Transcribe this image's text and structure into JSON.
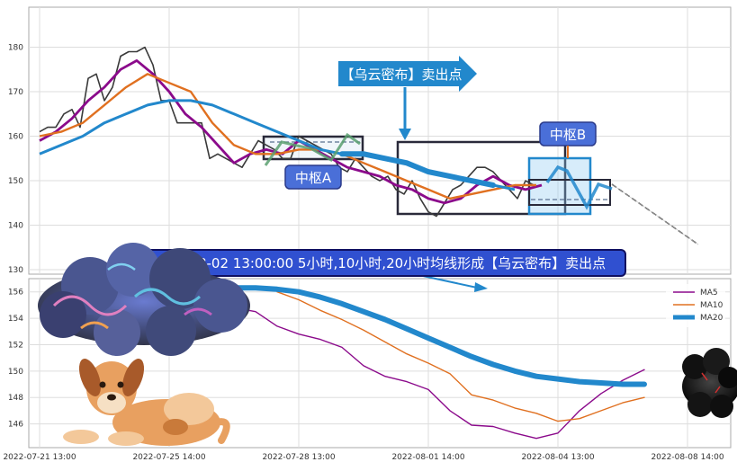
{
  "chart_data": [
    {
      "type": "line",
      "panel": "top",
      "ylim": [
        129,
        189
      ],
      "y_ticks": [
        130,
        140,
        150,
        160,
        170,
        180
      ],
      "grid": true,
      "series": [
        {
          "key": "price",
          "color": "#3a3a3a",
          "values": [
            [
              0,
              161
            ],
            [
              1.5,
              162
            ],
            [
              3,
              162
            ],
            [
              4.5,
              165
            ],
            [
              6,
              166
            ],
            [
              7.5,
              162
            ],
            [
              9,
              173
            ],
            [
              10.5,
              174
            ],
            [
              12,
              168
            ],
            [
              13.5,
              171
            ],
            [
              15,
              178
            ],
            [
              16.5,
              179
            ],
            [
              18,
              179
            ],
            [
              19.5,
              180
            ],
            [
              21,
              176
            ],
            [
              22.5,
              168
            ],
            [
              24,
              168
            ],
            [
              25.5,
              163
            ],
            [
              27,
              163
            ],
            [
              28.5,
              163
            ],
            [
              30,
              163
            ],
            [
              31.5,
              155
            ],
            [
              33,
              156
            ],
            [
              34.5,
              155
            ],
            [
              36,
              154
            ],
            [
              37.5,
              153
            ],
            [
              39,
              156
            ],
            [
              40.5,
              159
            ],
            [
              42,
              158
            ],
            [
              43.5,
              157
            ],
            [
              45,
              155
            ],
            [
              46.5,
              155
            ],
            [
              48,
              160
            ],
            [
              49.5,
              159
            ],
            [
              51,
              158
            ],
            [
              52.5,
              157
            ],
            [
              54,
              156
            ],
            [
              55.5,
              153
            ],
            [
              57,
              152
            ],
            [
              58.5,
              155
            ],
            [
              60,
              153
            ],
            [
              61.5,
              151
            ],
            [
              63,
              150
            ],
            [
              64.5,
              151
            ],
            [
              66,
              148
            ],
            [
              67.5,
              147
            ],
            [
              69,
              150
            ],
            [
              70.5,
              146
            ],
            [
              72,
              143
            ],
            [
              73.5,
              142
            ],
            [
              75,
              145
            ],
            [
              76.5,
              148
            ],
            [
              78,
              149
            ],
            [
              79.5,
              151
            ],
            [
              81,
              153
            ],
            [
              82.5,
              153
            ],
            [
              84,
              152
            ],
            [
              85.5,
              150
            ],
            [
              87,
              148
            ],
            [
              88.5,
              146
            ],
            [
              90,
              150
            ],
            [
              91.5,
              149
            ]
          ]
        },
        {
          "key": "ma5",
          "color": "#8b0a8b",
          "values": [
            [
              0,
              159
            ],
            [
              3,
              161
            ],
            [
              6,
              164
            ],
            [
              9,
              168
            ],
            [
              12,
              171
            ],
            [
              15,
              175
            ],
            [
              18,
              177
            ],
            [
              21,
              174
            ],
            [
              24,
              170
            ],
            [
              27,
              165
            ],
            [
              30,
              162
            ],
            [
              33,
              158
            ],
            [
              36,
              154
            ],
            [
              39,
              156
            ],
            [
              42,
              157
            ],
            [
              45,
              156
            ],
            [
              48,
              159
            ],
            [
              51,
              157
            ],
            [
              54,
              155
            ],
            [
              57,
              153
            ],
            [
              60,
              152
            ],
            [
              63,
              151
            ],
            [
              66,
              149
            ],
            [
              69,
              148
            ],
            [
              72,
              146
            ],
            [
              75,
              145
            ],
            [
              78,
              146
            ],
            [
              81,
              149
            ],
            [
              84,
              151
            ],
            [
              87,
              149
            ],
            [
              90,
              148
            ],
            [
              93,
              149
            ]
          ]
        },
        {
          "key": "ma10",
          "color": "#e07020",
          "values": [
            [
              0,
              160
            ],
            [
              4,
              161
            ],
            [
              8,
              163
            ],
            [
              12,
              167
            ],
            [
              16,
              171
            ],
            [
              20,
              174
            ],
            [
              24,
              172
            ],
            [
              28,
              170
            ],
            [
              32,
              163
            ],
            [
              36,
              158
            ],
            [
              40,
              156
            ],
            [
              44,
              156
            ],
            [
              48,
              157
            ],
            [
              52,
              157
            ],
            [
              56,
              156
            ],
            [
              60,
              154
            ],
            [
              64,
              152
            ],
            [
              68,
              150
            ],
            [
              72,
              148
            ],
            [
              76,
              146
            ],
            [
              80,
              147
            ],
            [
              84,
              148
            ],
            [
              88,
              149
            ],
            [
              92,
              149
            ]
          ]
        },
        {
          "key": "ma20",
          "color": "#2288cc",
          "values": [
            [
              0,
              156
            ],
            [
              4,
              158
            ],
            [
              8,
              160
            ],
            [
              12,
              163
            ],
            [
              16,
              165
            ],
            [
              20,
              167
            ],
            [
              24,
              168
            ],
            [
              28,
              168
            ],
            [
              32,
              167
            ],
            [
              36,
              165
            ],
            [
              40,
              163
            ],
            [
              44,
              161
            ],
            [
              48,
              159
            ],
            [
              52,
              157
            ],
            [
              56,
              156
            ],
            [
              60,
              156
            ],
            [
              64,
              155
            ],
            [
              68,
              154
            ],
            [
              72,
              152
            ],
            [
              76,
              151
            ],
            [
              80,
              150
            ],
            [
              84,
              149
            ],
            [
              88,
              148
            ]
          ]
        }
      ]
    },
    {
      "type": "line",
      "panel": "bottom",
      "ylim": [
        144.2,
        157
      ],
      "y_ticks": [
        146,
        148,
        150,
        152,
        154,
        156
      ],
      "x_ticks": [
        "2022-07-21 13:00",
        "2022-07-25 14:00",
        "2022-07-28 13:00",
        "2022-08-01 14:00",
        "2022-08-04 13:00",
        "2022-08-08 14:00"
      ],
      "x_tick_positions": [
        0,
        24,
        48,
        72,
        96,
        120
      ],
      "grid": true,
      "legend_position": "top-right",
      "series": [
        {
          "name": "MA5",
          "key": "ma5",
          "color": "#8b0a8b",
          "values": [
            [
              36,
              154.8
            ],
            [
              40,
              154.5
            ],
            [
              44,
              153.4
            ],
            [
              48,
              152.8
            ],
            [
              52,
              152.4
            ],
            [
              56,
              151.8
            ],
            [
              60,
              150.4
            ],
            [
              64,
              149.6
            ],
            [
              68,
              149.2
            ],
            [
              72,
              148.6
            ],
            [
              76,
              147.0
            ],
            [
              80,
              145.9
            ],
            [
              84,
              145.8
            ],
            [
              88,
              145.3
            ],
            [
              92,
              144.9
            ],
            [
              96,
              145.3
            ],
            [
              100,
              147.0
            ],
            [
              104,
              148.3
            ],
            [
              108,
              149.3
            ],
            [
              112,
              150.1
            ]
          ]
        },
        {
          "name": "MA10",
          "key": "ma10",
          "color": "#e07020",
          "values": [
            [
              44,
              156.0
            ],
            [
              48,
              155.4
            ],
            [
              52,
              154.6
            ],
            [
              56,
              153.9
            ],
            [
              60,
              153.1
            ],
            [
              64,
              152.2
            ],
            [
              68,
              151.3
            ],
            [
              72,
              150.6
            ],
            [
              76,
              149.8
            ],
            [
              80,
              148.2
            ],
            [
              84,
              147.8
            ],
            [
              88,
              147.2
            ],
            [
              92,
              146.8
            ],
            [
              96,
              146.2
            ],
            [
              100,
              146.4
            ],
            [
              104,
              147.0
            ],
            [
              108,
              147.6
            ],
            [
              112,
              148.0
            ]
          ]
        },
        {
          "name": "MA20",
          "key": "ma20",
          "color": "#2288cc",
          "values": [
            [
              36,
              156.3
            ],
            [
              40,
              156.3
            ],
            [
              44,
              156.2
            ],
            [
              48,
              156.0
            ],
            [
              52,
              155.6
            ],
            [
              56,
              155.1
            ],
            [
              60,
              154.5
            ],
            [
              64,
              153.9
            ],
            [
              68,
              153.2
            ],
            [
              72,
              152.5
            ],
            [
              76,
              151.8
            ],
            [
              80,
              151.1
            ],
            [
              84,
              150.5
            ],
            [
              88,
              150.0
            ],
            [
              92,
              149.6
            ],
            [
              96,
              149.4
            ],
            [
              100,
              149.2
            ],
            [
              104,
              149.1
            ],
            [
              108,
              149.0
            ],
            [
              112,
              149.0
            ]
          ]
        }
      ]
    }
  ],
  "annotations": {
    "zhongshu_a": "中枢A",
    "zhongshu_b": "中枢B",
    "top_arrow_label": "【乌云密布】卖出点",
    "banner": "2022-08-02 13:00:00 5小时,10小时,20小时均线形成【乌云密布】卖出点"
  },
  "colors": {
    "grid": "#dddddd",
    "axis_frame": "#aaaaaa",
    "label_box": "#4a6fd8",
    "label_box_border": "#2a3a8a",
    "banner_bg": "#3050d0",
    "banner_border": "#101060",
    "arrow_blue": "#2288cc",
    "box_dark": "#2a2a3a",
    "box_blue": "#2288cc"
  },
  "decorations": [
    "storm-cloud-illustration",
    "dog-illustration",
    "dark-cloud-illustration"
  ]
}
